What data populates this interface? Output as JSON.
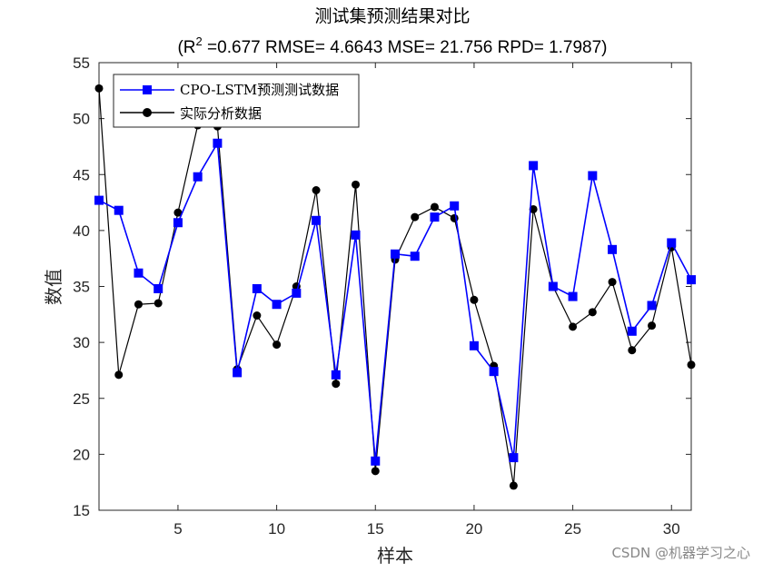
{
  "chart_data": {
    "type": "line",
    "title": "测试集预测结果对比",
    "subtitle": {
      "r2_prefix": "(R",
      "r2_sup": "2",
      "rest": " =0.677 RMSE= 4.6643 MSE= 21.756 RPD= 1.7987)"
    },
    "xlabel": "样本",
    "ylabel": "数值",
    "xlim": [
      1,
      31
    ],
    "ylim": [
      15,
      55
    ],
    "xticks": [
      5,
      10,
      15,
      20,
      25,
      30
    ],
    "yticks": [
      15,
      20,
      25,
      30,
      35,
      40,
      45,
      50,
      55
    ],
    "x": [
      1,
      2,
      3,
      4,
      5,
      6,
      7,
      8,
      9,
      10,
      11,
      12,
      13,
      14,
      15,
      16,
      17,
      18,
      19,
      20,
      21,
      22,
      23,
      24,
      25,
      26,
      27,
      28,
      29,
      30,
      31
    ],
    "series": [
      {
        "name": "CPO-LSTM预测测试数据",
        "color": "#0000ff",
        "marker": "square",
        "values": [
          42.7,
          41.8,
          36.2,
          34.8,
          40.7,
          44.8,
          47.8,
          27.3,
          34.8,
          33.4,
          34.4,
          40.9,
          27.1,
          39.6,
          19.4,
          37.9,
          37.7,
          41.2,
          42.2,
          29.7,
          27.4,
          19.7,
          45.8,
          35.0,
          34.1,
          44.9,
          38.3,
          31.0,
          33.3,
          38.9,
          35.6
        ]
      },
      {
        "name": "实际分析数据",
        "color": "#000000",
        "marker": "circle",
        "values": [
          52.7,
          27.1,
          33.4,
          33.5,
          41.6,
          49.4,
          49.3,
          27.6,
          32.4,
          29.8,
          35.0,
          43.6,
          26.3,
          44.1,
          18.5,
          37.4,
          41.2,
          42.1,
          41.1,
          33.8,
          27.9,
          17.2,
          41.9,
          35.0,
          31.4,
          32.7,
          35.4,
          29.3,
          31.5,
          38.5,
          28.0
        ]
      }
    ],
    "legend_position": "top-left",
    "grid": false,
    "box": true
  },
  "watermark": "CSDN @机器学习之心"
}
